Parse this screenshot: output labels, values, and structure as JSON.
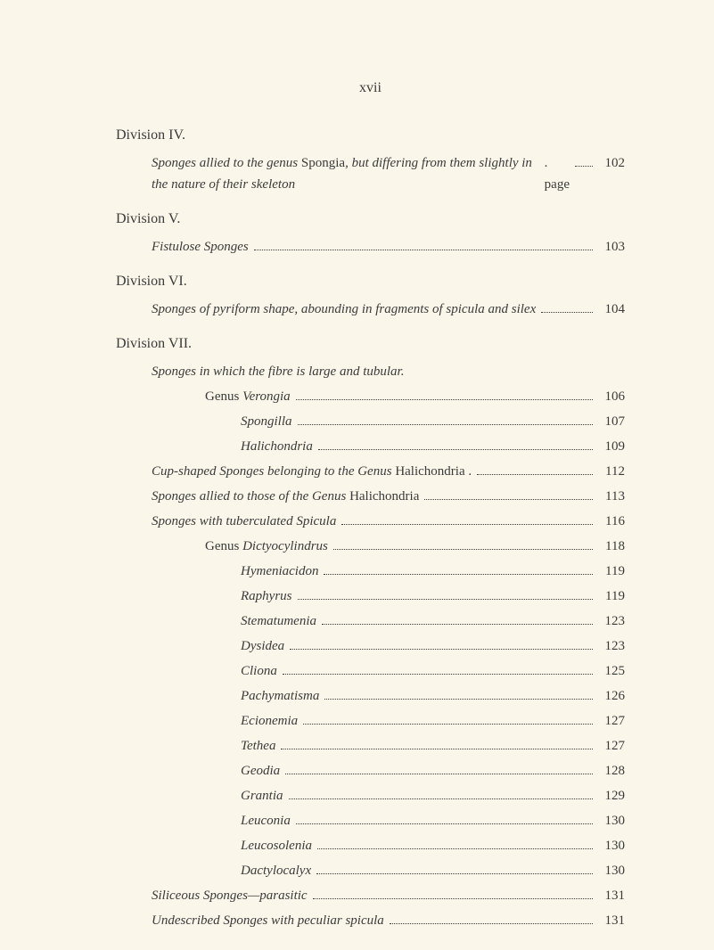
{
  "pageNumberTop": "xvii",
  "divisions": [
    {
      "heading": "Division IV.",
      "entries": [
        {
          "text_italic": "Sponges allied to the genus ",
          "text_roman_mid": "Spongia,",
          "text_italic_end": " but differing from them slightly in the nature of their skeleton",
          "suffix": "page",
          "page": "102",
          "multiline": true,
          "indent": "indent-1"
        }
      ]
    },
    {
      "heading": "Division V.",
      "entries": [
        {
          "text_italic": "Fistulose Sponges",
          "page": "103",
          "indent": "indent-1"
        }
      ]
    },
    {
      "heading": "Division VI.",
      "entries": [
        {
          "text_italic": "Sponges of pyriform shape, abounding in fragments of spicula and silex",
          "page": "104",
          "multiline": true,
          "indent": "indent-1"
        }
      ]
    },
    {
      "heading": "Division VII.",
      "entries": [
        {
          "text_italic": "Sponges in which the fibre is large and tubular.",
          "page": "",
          "indent": "indent-1",
          "no_dots": true
        },
        {
          "text_roman_pre": "Genus ",
          "text_italic": "Verongia",
          "page": "106",
          "indent": "indent-3"
        },
        {
          "text_italic": "Spongilla",
          "page": "107",
          "indent": "indent-genus"
        },
        {
          "text_italic": "Halichondria",
          "page": "109",
          "indent": "indent-genus"
        },
        {
          "text_italic": "Cup-shaped Sponges belonging to the Genus ",
          "text_roman_end": "Halichondria .",
          "page": "112",
          "indent": "indent-1"
        },
        {
          "text_italic": "Sponges allied to those of the Genus ",
          "text_roman_end": "Halichondria",
          "page": "113",
          "indent": "indent-1"
        },
        {
          "text_italic": "Sponges with tuberculated Spicula",
          "page": "116",
          "indent": "indent-1"
        },
        {
          "text_roman_pre": "Genus ",
          "text_italic": "Dictyocylindrus",
          "page": "118",
          "indent": "indent-3"
        },
        {
          "text_italic": "Hymeniacidon",
          "page": "119",
          "indent": "indent-genus"
        },
        {
          "text_italic": "Raphyrus",
          "page": "119",
          "indent": "indent-genus"
        },
        {
          "text_italic": "Stematumenia",
          "page": "123",
          "indent": "indent-genus"
        },
        {
          "text_italic": "Dysidea",
          "page": "123",
          "indent": "indent-genus"
        },
        {
          "text_italic": "Cliona",
          "page": "125",
          "indent": "indent-genus"
        },
        {
          "text_italic": "Pachymatisma",
          "page": "126",
          "indent": "indent-genus"
        },
        {
          "text_italic": "Ecionemia",
          "page": "127",
          "indent": "indent-genus"
        },
        {
          "text_italic": "Tethea",
          "page": "127",
          "indent": "indent-genus"
        },
        {
          "text_italic": "Geodia",
          "page": "128",
          "indent": "indent-genus"
        },
        {
          "text_italic": "Grantia",
          "page": "129",
          "indent": "indent-genus"
        },
        {
          "text_italic": "Leuconia",
          "page": "130",
          "indent": "indent-genus"
        },
        {
          "text_italic": "Leucosolenia",
          "page": "130",
          "indent": "indent-genus"
        },
        {
          "text_italic": "Dactylocalyx",
          "page": "130",
          "indent": "indent-genus"
        },
        {
          "text_italic": "Siliceous Sponges—parasitic",
          "page": "131",
          "indent": "indent-1"
        },
        {
          "text_italic": "Undescribed Sponges with peculiar spicula",
          "page": "131",
          "indent": "indent-1"
        }
      ]
    }
  ]
}
